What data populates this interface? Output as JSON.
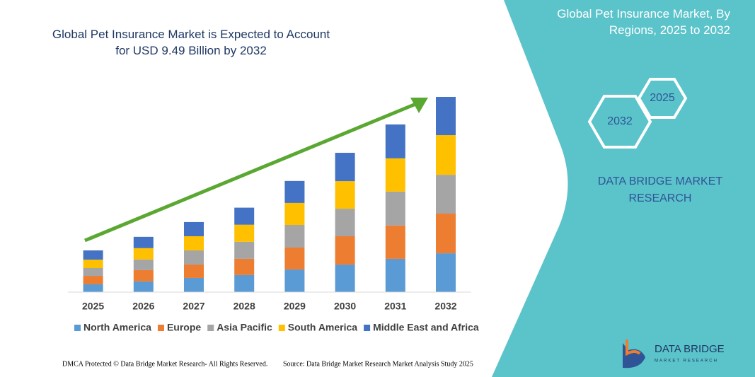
{
  "chart_data": {
    "type": "stacked_bar",
    "title": "Global Pet Insurance Market is Expected to Account for USD 9.49 Billion by 2032",
    "categories": [
      "2025",
      "2026",
      "2027",
      "2028",
      "2029",
      "2030",
      "2031",
      "2032"
    ],
    "series": [
      {
        "name": "North America",
        "color": "#5b9bd5",
        "values": [
          0.38,
          0.52,
          0.69,
          0.83,
          1.1,
          1.34,
          1.62,
          1.89
        ]
      },
      {
        "name": "Europe",
        "color": "#ed7d31",
        "values": [
          0.41,
          0.55,
          0.65,
          0.79,
          1.07,
          1.38,
          1.62,
          1.93
        ]
      },
      {
        "name": "Asia Pacific",
        "color": "#a5a5a5",
        "values": [
          0.38,
          0.52,
          0.69,
          0.83,
          1.1,
          1.34,
          1.65,
          1.89
        ]
      },
      {
        "name": "South America",
        "color": "#ffc000",
        "values": [
          0.41,
          0.55,
          0.69,
          0.83,
          1.07,
          1.34,
          1.62,
          1.93
        ]
      },
      {
        "name": "Middle East and Africa",
        "color": "#4472c4",
        "values": [
          0.45,
          0.55,
          0.69,
          0.83,
          1.07,
          1.38,
          1.65,
          1.86
        ]
      }
    ],
    "legend": "bottom"
  },
  "panel": {
    "title": "Global Pet Insurance Market, By Regions, 2025 to 2032",
    "hexagons": [
      "2032",
      "2025"
    ],
    "brand": "DATA BRIDGE MARKET RESEARCH"
  },
  "footer": {
    "left": "DMCA Protected © Data Bridge Market Research- All Rights Reserved.",
    "right": "Source: Data Bridge Market Research Market Analysis Study 2025"
  },
  "logo": {
    "name": "DATA BRIDGE",
    "tagline": "MARKET RESEARCH"
  }
}
